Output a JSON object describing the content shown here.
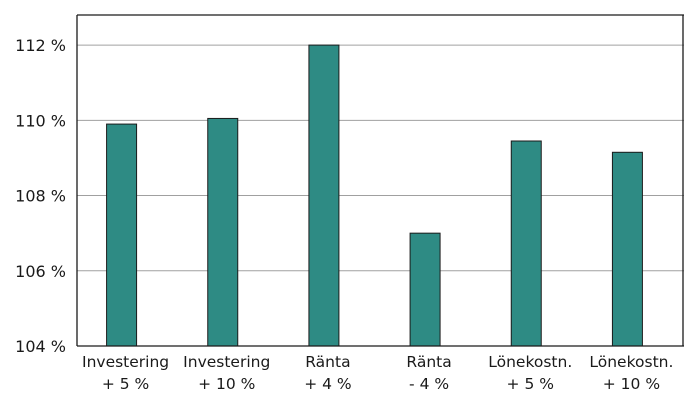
{
  "chart_data": {
    "type": "bar",
    "categories": [
      [
        "Investering",
        "+ 5 %"
      ],
      [
        "Investering",
        "+ 10 %"
      ],
      [
        "Ränta",
        "+ 4 %"
      ],
      [
        "Ränta",
        "- 4 %"
      ],
      [
        "Lönekostn.",
        "+ 5 %"
      ],
      [
        "Lönekostn.",
        "+ 10 %"
      ]
    ],
    "values": [
      109.9,
      110.05,
      112.0,
      107.0,
      109.45,
      109.15
    ],
    "ylim": [
      104,
      112.8
    ],
    "yticks": [
      104,
      106,
      108,
      110,
      112
    ],
    "ytick_labels": [
      "104 %",
      "106 %",
      "108 %",
      "110 %",
      "112 %"
    ],
    "grid": true,
    "colors": {
      "bar": "#2e8b84",
      "bar_stroke": "#1b1b1b",
      "grid": "#a0a0a0",
      "axis": "#1b1b1b"
    }
  }
}
